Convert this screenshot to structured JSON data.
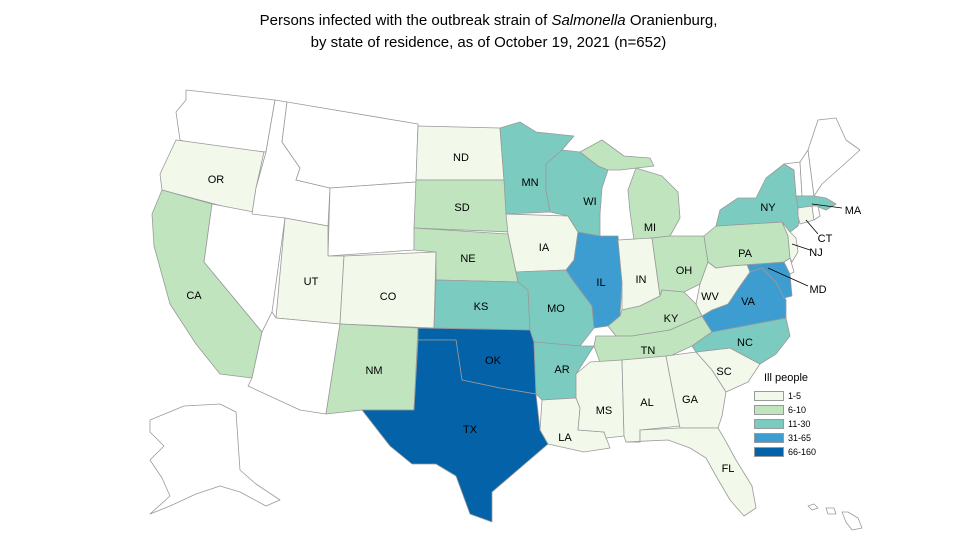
{
  "title": {
    "line1_prefix": "Persons infected with the outbreak strain of ",
    "line1_italic": "Salmonella",
    "line1_suffix": " Oranienburg,",
    "line2": "by state of residence, as of October 19, 2021 (n=652)"
  },
  "legend": {
    "title": "Ill people",
    "items": [
      {
        "label": "1-5",
        "color": "#f2f8ea"
      },
      {
        "label": "6-10",
        "color": "#bfe4be"
      },
      {
        "label": "11-30",
        "color": "#7ccbc0"
      },
      {
        "label": "31-65",
        "color": "#3d9dd0"
      },
      {
        "label": "66-160",
        "color": "#0462a8"
      }
    ]
  },
  "colors": {
    "none": "#ffffff",
    "c1": "#f2f8ea",
    "c2": "#bfe4be",
    "c3": "#7ccbc0",
    "c4": "#3d9dd0",
    "c5": "#0462a8",
    "border": "#9a9a9a"
  },
  "states": {
    "OR": {
      "label": "OR",
      "range": "1-5"
    },
    "CA": {
      "label": "CA",
      "range": "6-10"
    },
    "UT": {
      "label": "UT",
      "range": "1-5"
    },
    "CO": {
      "label": "CO",
      "range": "1-5"
    },
    "NM": {
      "label": "NM",
      "range": "6-10"
    },
    "ND": {
      "label": "ND",
      "range": "1-5"
    },
    "SD": {
      "label": "SD",
      "range": "6-10"
    },
    "NE": {
      "label": "NE",
      "range": "6-10"
    },
    "KS": {
      "label": "KS",
      "range": "11-30"
    },
    "OK": {
      "label": "OK",
      "range": "66-160"
    },
    "TX": {
      "label": "TX",
      "range": "66-160"
    },
    "MN": {
      "label": "MN",
      "range": "11-30"
    },
    "IA": {
      "label": "IA",
      "range": "1-5"
    },
    "MO": {
      "label": "MO",
      "range": "11-30"
    },
    "AR": {
      "label": "AR",
      "range": "11-30"
    },
    "LA": {
      "label": "LA",
      "range": "1-5"
    },
    "WI": {
      "label": "WI",
      "range": "11-30"
    },
    "IL": {
      "label": "IL",
      "range": "31-65"
    },
    "MI": {
      "label": "MI",
      "range": "6-10"
    },
    "IN": {
      "label": "IN",
      "range": "1-5"
    },
    "OH": {
      "label": "OH",
      "range": "6-10"
    },
    "KY": {
      "label": "KY",
      "range": "6-10"
    },
    "TN": {
      "label": "TN",
      "range": "6-10"
    },
    "MS": {
      "label": "MS",
      "range": "1-5"
    },
    "AL": {
      "label": "AL",
      "range": "1-5"
    },
    "GA": {
      "label": "GA",
      "range": "1-5"
    },
    "FL": {
      "label": "FL",
      "range": "1-5"
    },
    "SC": {
      "label": "SC",
      "range": "1-5"
    },
    "NC": {
      "label": "NC",
      "range": "11-30"
    },
    "VA": {
      "label": "VA",
      "range": "31-65"
    },
    "WV": {
      "label": "WV",
      "range": "1-5"
    },
    "MD": {
      "label": "MD",
      "range": "31-65"
    },
    "PA": {
      "label": "PA",
      "range": "6-10"
    },
    "NY": {
      "label": "NY",
      "range": "11-30"
    },
    "NJ": {
      "label": "NJ",
      "range": "1-5"
    },
    "CT": {
      "label": "CT",
      "range": "1-5"
    },
    "MA": {
      "label": "MA",
      "range": "11-30"
    }
  }
}
